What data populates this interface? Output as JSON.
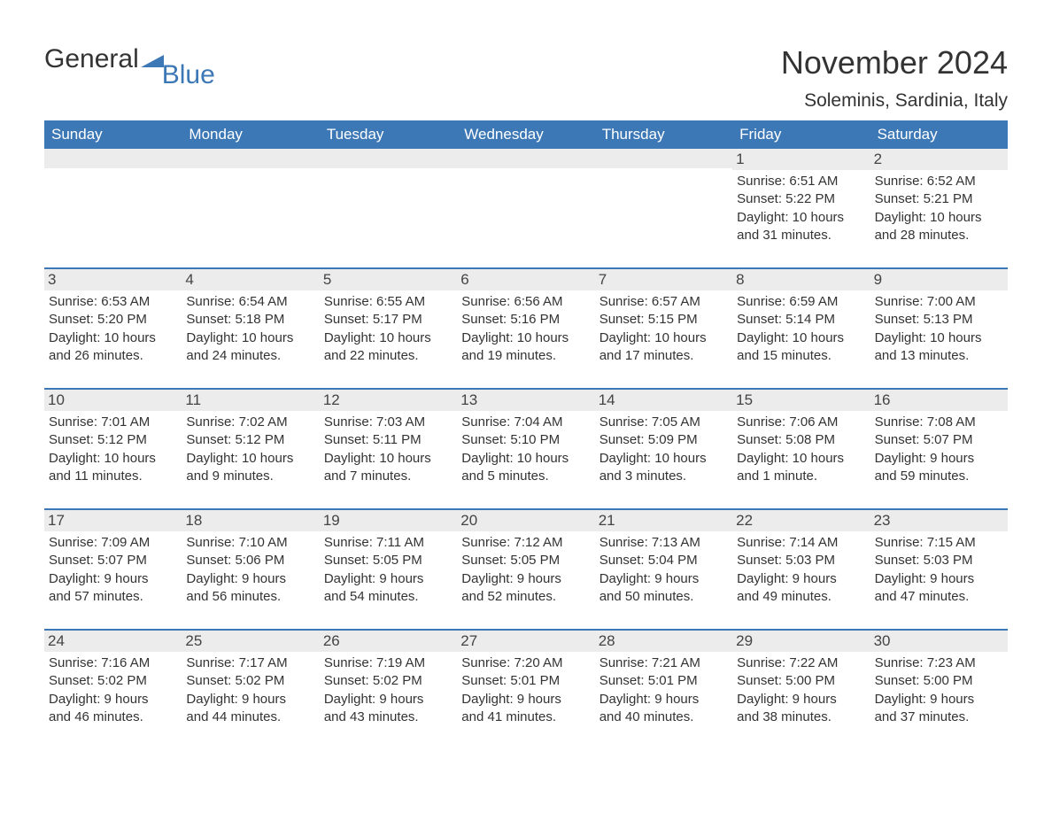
{
  "logo": {
    "text1": "General",
    "text2": "Blue",
    "icon_color": "#3d78b6"
  },
  "title": "November 2024",
  "location": "Soleminis, Sardinia, Italy",
  "weekdays": [
    "Sunday",
    "Monday",
    "Tuesday",
    "Wednesday",
    "Thursday",
    "Friday",
    "Saturday"
  ],
  "styling": {
    "header_bg": "#3d78b6",
    "header_text_color": "#ffffff",
    "daynum_bg": "#ececec",
    "daynum_border": "#3d78b6",
    "body_text_color": "#333333",
    "background": "#ffffff",
    "title_fontsize": 36,
    "location_fontsize": 21,
    "weekday_fontsize": 17,
    "daynum_fontsize": 17,
    "body_fontsize": 15
  },
  "weeks": [
    [
      null,
      null,
      null,
      null,
      null,
      {
        "n": "1",
        "sunrise": "Sunrise: 6:51 AM",
        "sunset": "Sunset: 5:22 PM",
        "d1": "Daylight: 10 hours",
        "d2": "and 31 minutes."
      },
      {
        "n": "2",
        "sunrise": "Sunrise: 6:52 AM",
        "sunset": "Sunset: 5:21 PM",
        "d1": "Daylight: 10 hours",
        "d2": "and 28 minutes."
      }
    ],
    [
      {
        "n": "3",
        "sunrise": "Sunrise: 6:53 AM",
        "sunset": "Sunset: 5:20 PM",
        "d1": "Daylight: 10 hours",
        "d2": "and 26 minutes."
      },
      {
        "n": "4",
        "sunrise": "Sunrise: 6:54 AM",
        "sunset": "Sunset: 5:18 PM",
        "d1": "Daylight: 10 hours",
        "d2": "and 24 minutes."
      },
      {
        "n": "5",
        "sunrise": "Sunrise: 6:55 AM",
        "sunset": "Sunset: 5:17 PM",
        "d1": "Daylight: 10 hours",
        "d2": "and 22 minutes."
      },
      {
        "n": "6",
        "sunrise": "Sunrise: 6:56 AM",
        "sunset": "Sunset: 5:16 PM",
        "d1": "Daylight: 10 hours",
        "d2": "and 19 minutes."
      },
      {
        "n": "7",
        "sunrise": "Sunrise: 6:57 AM",
        "sunset": "Sunset: 5:15 PM",
        "d1": "Daylight: 10 hours",
        "d2": "and 17 minutes."
      },
      {
        "n": "8",
        "sunrise": "Sunrise: 6:59 AM",
        "sunset": "Sunset: 5:14 PM",
        "d1": "Daylight: 10 hours",
        "d2": "and 15 minutes."
      },
      {
        "n": "9",
        "sunrise": "Sunrise: 7:00 AM",
        "sunset": "Sunset: 5:13 PM",
        "d1": "Daylight: 10 hours",
        "d2": "and 13 minutes."
      }
    ],
    [
      {
        "n": "10",
        "sunrise": "Sunrise: 7:01 AM",
        "sunset": "Sunset: 5:12 PM",
        "d1": "Daylight: 10 hours",
        "d2": "and 11 minutes."
      },
      {
        "n": "11",
        "sunrise": "Sunrise: 7:02 AM",
        "sunset": "Sunset: 5:12 PM",
        "d1": "Daylight: 10 hours",
        "d2": "and 9 minutes."
      },
      {
        "n": "12",
        "sunrise": "Sunrise: 7:03 AM",
        "sunset": "Sunset: 5:11 PM",
        "d1": "Daylight: 10 hours",
        "d2": "and 7 minutes."
      },
      {
        "n": "13",
        "sunrise": "Sunrise: 7:04 AM",
        "sunset": "Sunset: 5:10 PM",
        "d1": "Daylight: 10 hours",
        "d2": "and 5 minutes."
      },
      {
        "n": "14",
        "sunrise": "Sunrise: 7:05 AM",
        "sunset": "Sunset: 5:09 PM",
        "d1": "Daylight: 10 hours",
        "d2": "and 3 minutes."
      },
      {
        "n": "15",
        "sunrise": "Sunrise: 7:06 AM",
        "sunset": "Sunset: 5:08 PM",
        "d1": "Daylight: 10 hours",
        "d2": "and 1 minute."
      },
      {
        "n": "16",
        "sunrise": "Sunrise: 7:08 AM",
        "sunset": "Sunset: 5:07 PM",
        "d1": "Daylight: 9 hours",
        "d2": "and 59 minutes."
      }
    ],
    [
      {
        "n": "17",
        "sunrise": "Sunrise: 7:09 AM",
        "sunset": "Sunset: 5:07 PM",
        "d1": "Daylight: 9 hours",
        "d2": "and 57 minutes."
      },
      {
        "n": "18",
        "sunrise": "Sunrise: 7:10 AM",
        "sunset": "Sunset: 5:06 PM",
        "d1": "Daylight: 9 hours",
        "d2": "and 56 minutes."
      },
      {
        "n": "19",
        "sunrise": "Sunrise: 7:11 AM",
        "sunset": "Sunset: 5:05 PM",
        "d1": "Daylight: 9 hours",
        "d2": "and 54 minutes."
      },
      {
        "n": "20",
        "sunrise": "Sunrise: 7:12 AM",
        "sunset": "Sunset: 5:05 PM",
        "d1": "Daylight: 9 hours",
        "d2": "and 52 minutes."
      },
      {
        "n": "21",
        "sunrise": "Sunrise: 7:13 AM",
        "sunset": "Sunset: 5:04 PM",
        "d1": "Daylight: 9 hours",
        "d2": "and 50 minutes."
      },
      {
        "n": "22",
        "sunrise": "Sunrise: 7:14 AM",
        "sunset": "Sunset: 5:03 PM",
        "d1": "Daylight: 9 hours",
        "d2": "and 49 minutes."
      },
      {
        "n": "23",
        "sunrise": "Sunrise: 7:15 AM",
        "sunset": "Sunset: 5:03 PM",
        "d1": "Daylight: 9 hours",
        "d2": "and 47 minutes."
      }
    ],
    [
      {
        "n": "24",
        "sunrise": "Sunrise: 7:16 AM",
        "sunset": "Sunset: 5:02 PM",
        "d1": "Daylight: 9 hours",
        "d2": "and 46 minutes."
      },
      {
        "n": "25",
        "sunrise": "Sunrise: 7:17 AM",
        "sunset": "Sunset: 5:02 PM",
        "d1": "Daylight: 9 hours",
        "d2": "and 44 minutes."
      },
      {
        "n": "26",
        "sunrise": "Sunrise: 7:19 AM",
        "sunset": "Sunset: 5:02 PM",
        "d1": "Daylight: 9 hours",
        "d2": "and 43 minutes."
      },
      {
        "n": "27",
        "sunrise": "Sunrise: 7:20 AM",
        "sunset": "Sunset: 5:01 PM",
        "d1": "Daylight: 9 hours",
        "d2": "and 41 minutes."
      },
      {
        "n": "28",
        "sunrise": "Sunrise: 7:21 AM",
        "sunset": "Sunset: 5:01 PM",
        "d1": "Daylight: 9 hours",
        "d2": "and 40 minutes."
      },
      {
        "n": "29",
        "sunrise": "Sunrise: 7:22 AM",
        "sunset": "Sunset: 5:00 PM",
        "d1": "Daylight: 9 hours",
        "d2": "and 38 minutes."
      },
      {
        "n": "30",
        "sunrise": "Sunrise: 7:23 AM",
        "sunset": "Sunset: 5:00 PM",
        "d1": "Daylight: 9 hours",
        "d2": "and 37 minutes."
      }
    ]
  ]
}
